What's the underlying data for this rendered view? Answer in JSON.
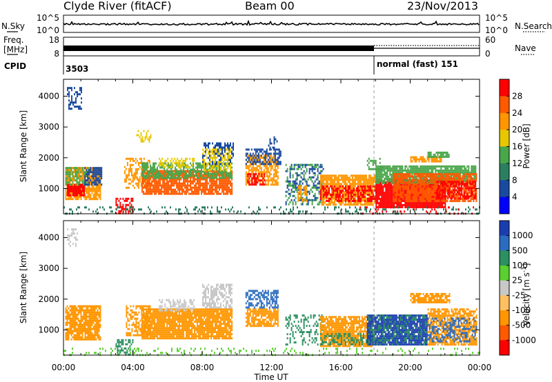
{
  "header": {
    "station": "Clyde River (fitACF)",
    "beam": "Beam 00",
    "date": "23/Nov/2013"
  },
  "panels_top": {
    "nsky_label": "N.Sky",
    "nsky_ticks": [
      "10^5",
      "10^0"
    ],
    "nsearch_label": "N.Search",
    "nsearch_ticks": [
      "10^5",
      "10^0"
    ],
    "freq_label_1": "Freq.",
    "freq_label_2": "[MHz]",
    "freq_ticks": [
      "18",
      "8"
    ],
    "nave_label": "Nave",
    "nave_ticks": [
      "60",
      "0"
    ],
    "cpid_label": "CPID",
    "cpid_left": "3503",
    "cpid_right": "normal (fast) 151"
  },
  "chart_data": [
    {
      "type": "heatmap",
      "name": "power",
      "ylabel": "Slant Range [km]",
      "yticks": [
        1000,
        2000,
        3000,
        4000
      ],
      "ylim": [
        180,
        4550
      ],
      "xlim": [
        0,
        24
      ],
      "xticks": [
        "00:00",
        "04:00",
        "08:00",
        "12:00",
        "16:00",
        "20:00",
        "00:00"
      ],
      "xlabel": "Time UT",
      "colorbar": {
        "label": "Power [dB]",
        "ticks": [
          "28",
          "24",
          "20",
          "16",
          "12",
          "8",
          "4"
        ],
        "colors": [
          "#ff0000",
          "#ff5a00",
          "#ff9600",
          "#e7c800",
          "#4aa64a",
          "#2c7e60",
          "#1a4aa0",
          "#0000ff"
        ]
      },
      "regions": [
        {
          "t0": 0.1,
          "t1": 2.1,
          "r0": 650,
          "r1": 1700,
          "c": "#ff9600",
          "d": 0.8
        },
        {
          "t0": 0.2,
          "t1": 1.2,
          "r0": 800,
          "r1": 1150,
          "c": "#ff0000",
          "d": 0.9
        },
        {
          "t0": 0.1,
          "t1": 1.4,
          "r0": 1150,
          "r1": 1700,
          "c": "#4aa64a",
          "d": 0.6
        },
        {
          "t0": 1.2,
          "t1": 2.2,
          "r0": 1100,
          "r1": 1700,
          "c": "#1a4aa0",
          "d": 0.7
        },
        {
          "t0": 0.2,
          "t1": 1.0,
          "r0": 3600,
          "r1": 4300,
          "c": "#1a4aa0",
          "d": 0.35
        },
        {
          "t0": 3.0,
          "t1": 4.0,
          "r0": 180,
          "r1": 700,
          "c": "#ff0000",
          "d": 0.6
        },
        {
          "t0": 3.5,
          "t1": 5.0,
          "r0": 1000,
          "r1": 2000,
          "c": "#ff9600",
          "d": 0.45
        },
        {
          "t0": 4.5,
          "t1": 9.7,
          "r0": 800,
          "r1": 1600,
          "c": "#ff5a00",
          "d": 0.85
        },
        {
          "t0": 4.5,
          "t1": 9.7,
          "r0": 1350,
          "r1": 1850,
          "c": "#4aa64a",
          "d": 0.7
        },
        {
          "t0": 5.5,
          "t1": 7.5,
          "r0": 1700,
          "r1": 2000,
          "c": "#e7c800",
          "d": 0.5
        },
        {
          "t0": 8.0,
          "t1": 9.8,
          "r0": 1800,
          "r1": 2500,
          "c": "#1a4aa0",
          "d": 0.55
        },
        {
          "t0": 8.0,
          "t1": 9.6,
          "r0": 1600,
          "r1": 2300,
          "c": "#e7c800",
          "d": 0.45
        },
        {
          "t0": 4.2,
          "t1": 5.0,
          "r0": 2500,
          "r1": 2900,
          "c": "#e7c800",
          "d": 0.4
        },
        {
          "t0": 10.5,
          "t1": 12.4,
          "r0": 1100,
          "r1": 2100,
          "c": "#ff9600",
          "d": 0.7
        },
        {
          "t0": 10.5,
          "t1": 12.5,
          "r0": 1800,
          "r1": 2300,
          "c": "#1a4aa0",
          "d": 0.5
        },
        {
          "t0": 10.6,
          "t1": 11.6,
          "r0": 1100,
          "r1": 1500,
          "c": "#ff0000",
          "d": 0.6
        },
        {
          "t0": 11.8,
          "t1": 12.3,
          "r0": 2300,
          "r1": 2700,
          "c": "#1a4aa0",
          "d": 0.35
        },
        {
          "t0": 12.8,
          "t1": 15.0,
          "r0": 500,
          "r1": 1800,
          "c": "#1a4aa0",
          "d": 0.3
        },
        {
          "t0": 12.8,
          "t1": 15.0,
          "r0": 500,
          "r1": 1800,
          "c": "#4aa64a",
          "d": 0.25
        },
        {
          "t0": 13.5,
          "t1": 14.0,
          "r0": 600,
          "r1": 1100,
          "c": "#ff9600",
          "d": 0.55
        },
        {
          "t0": 14.8,
          "t1": 18.0,
          "r0": 500,
          "r1": 1450,
          "c": "#ff9600",
          "d": 0.85
        },
        {
          "t0": 14.8,
          "t1": 18.0,
          "r0": 600,
          "r1": 1100,
          "c": "#ff0000",
          "d": 0.55
        },
        {
          "t0": 17.5,
          "t1": 18.5,
          "r0": 1600,
          "r1": 2000,
          "c": "#4aa64a",
          "d": 0.35
        },
        {
          "t0": 18.0,
          "t1": 22.0,
          "r0": 400,
          "r1": 1300,
          "c": "#ff0000",
          "d": 0.95
        },
        {
          "t0": 18.0,
          "t1": 23.8,
          "r0": 1200,
          "r1": 1750,
          "c": "#4aa64a",
          "d": 0.85
        },
        {
          "t0": 19.0,
          "t1": 23.8,
          "r0": 600,
          "r1": 1500,
          "c": "#ff5a00",
          "d": 0.8
        },
        {
          "t0": 21.5,
          "t1": 23.8,
          "r0": 700,
          "r1": 1250,
          "c": "#ff0000",
          "d": 0.6
        },
        {
          "t0": 20.0,
          "t1": 21.8,
          "r0": 1900,
          "r1": 2050,
          "c": "#ff9600",
          "d": 0.8
        },
        {
          "t0": 21.0,
          "t1": 22.3,
          "r0": 2050,
          "r1": 2200,
          "c": "#4aa64a",
          "d": 0.8
        },
        {
          "t0": 0.0,
          "t1": 24.0,
          "r0": 180,
          "r1": 420,
          "c": "#2c7e60",
          "d": 0.18
        },
        {
          "t0": 17.0,
          "t1": 24.0,
          "r0": 180,
          "r1": 420,
          "c": "#ff0000",
          "d": 0.12
        }
      ]
    },
    {
      "type": "heatmap",
      "name": "velocity",
      "ylabel": "Slant Range [km]",
      "yticks": [
        1000,
        2000,
        3000,
        4000
      ],
      "ylim": [
        180,
        4550
      ],
      "xlim": [
        0,
        24
      ],
      "xticks": [
        "00:00",
        "04:00",
        "08:00",
        "12:00",
        "16:00",
        "20:00",
        "00:00"
      ],
      "xlabel": "Time UT",
      "colorbar": {
        "label": "Velocity [m s",
        "label_sup": "-1",
        "label_end": "]",
        "ticks": [
          "1000",
          "500",
          "100",
          "25",
          "-25",
          "-100",
          "-500",
          "-1000"
        ],
        "colors": [
          "#1a3eb0",
          "#2c6cc0",
          "#2c9060",
          "#5acf30",
          "#c8c8c8",
          "#ffc060",
          "#ff9600",
          "#ff5a00",
          "#ff0000"
        ]
      },
      "regions": [
        {
          "t0": 0.1,
          "t1": 2.1,
          "r0": 700,
          "r1": 1800,
          "c": "#ff9600",
          "d": 0.85
        },
        {
          "t0": 0.2,
          "t1": 0.8,
          "r0": 3700,
          "r1": 4300,
          "c": "#c8c8c8",
          "d": 0.35
        },
        {
          "t0": 3.0,
          "t1": 4.0,
          "r0": 180,
          "r1": 700,
          "c": "#2c9060",
          "d": 0.5
        },
        {
          "t0": 3.6,
          "t1": 5.0,
          "r0": 800,
          "r1": 1800,
          "c": "#ff9600",
          "d": 0.5
        },
        {
          "t0": 4.5,
          "t1": 9.7,
          "r0": 700,
          "r1": 1700,
          "c": "#ff9600",
          "d": 0.9
        },
        {
          "t0": 5.5,
          "t1": 7.5,
          "r0": 1600,
          "r1": 2000,
          "c": "#c8c8c8",
          "d": 0.55
        },
        {
          "t0": 8.0,
          "t1": 9.7,
          "r0": 1700,
          "r1": 2500,
          "c": "#c8c8c8",
          "d": 0.6
        },
        {
          "t0": 10.5,
          "t1": 12.4,
          "r0": 1100,
          "r1": 1700,
          "c": "#ff9600",
          "d": 0.8
        },
        {
          "t0": 10.5,
          "t1": 12.4,
          "r0": 1700,
          "r1": 2300,
          "c": "#2c6cc0",
          "d": 0.6
        },
        {
          "t0": 12.8,
          "t1": 15.0,
          "r0": 500,
          "r1": 1500,
          "c": "#2c9060",
          "d": 0.3
        },
        {
          "t0": 14.8,
          "t1": 17.8,
          "r0": 500,
          "r1": 1450,
          "c": "#ff9600",
          "d": 0.85
        },
        {
          "t0": 14.8,
          "t1": 17.8,
          "r0": 500,
          "r1": 900,
          "c": "#2c9060",
          "d": 0.4
        },
        {
          "t0": 17.5,
          "t1": 21.0,
          "r0": 500,
          "r1": 1500,
          "c": "#1a3eb0",
          "d": 0.9
        },
        {
          "t0": 17.5,
          "t1": 21.0,
          "r0": 500,
          "r1": 1500,
          "c": "#2c9060",
          "d": 0.3
        },
        {
          "t0": 21.0,
          "t1": 23.8,
          "r0": 500,
          "r1": 1700,
          "c": "#ff9600",
          "d": 0.7
        },
        {
          "t0": 21.0,
          "t1": 23.8,
          "r0": 600,
          "r1": 1400,
          "c": "#2c6cc0",
          "d": 0.35
        },
        {
          "t0": 20.0,
          "t1": 22.3,
          "r0": 1900,
          "r1": 2200,
          "c": "#ff9600",
          "d": 0.8
        },
        {
          "t0": 0.0,
          "t1": 24.0,
          "r0": 180,
          "r1": 420,
          "c": "#5acf30",
          "d": 0.15
        }
      ]
    }
  ]
}
